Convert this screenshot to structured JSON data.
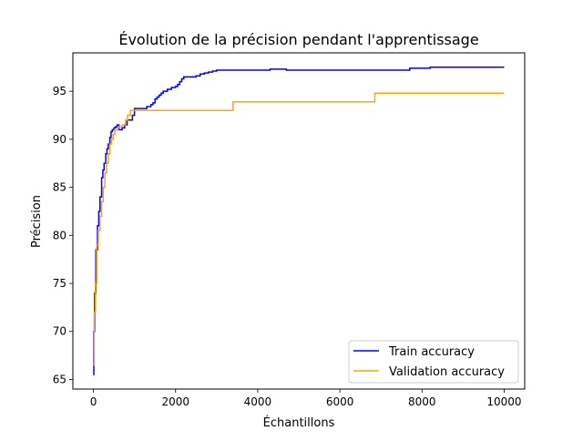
{
  "chart_data": {
    "type": "line",
    "title": "Évolution de la précision pendant l'apprentissage",
    "xlabel": "Échantillons",
    "ylabel": "Précision",
    "xlim": [
      -500,
      10500
    ],
    "ylim": [
      64,
      99
    ],
    "x_ticks": [
      0,
      2000,
      4000,
      6000,
      8000,
      10000
    ],
    "x_tick_labels": [
      "0",
      "2000",
      "4000",
      "6000",
      "8000",
      "10000"
    ],
    "y_ticks": [
      65,
      70,
      75,
      80,
      85,
      90,
      95
    ],
    "y_tick_labels": [
      "65",
      "70",
      "75",
      "80",
      "85",
      "90",
      "95"
    ],
    "grid": false,
    "legend_position": "lower-right",
    "series": [
      {
        "name": "Train accuracy",
        "color": "#0000ff",
        "step": true,
        "x": [
          0,
          10,
          30,
          60,
          100,
          130,
          160,
          200,
          230,
          260,
          300,
          330,
          360,
          400,
          430,
          460,
          500,
          540,
          580,
          620,
          660,
          700,
          760,
          820,
          880,
          950,
          1000,
          1100,
          1200,
          1300,
          1400,
          1450,
          1500,
          1550,
          1600,
          1650,
          1700,
          1800,
          1900,
          2000,
          2050,
          2100,
          2150,
          2200,
          2300,
          2500,
          2600,
          2700,
          2800,
          2900,
          3000,
          3500,
          4000,
          4300,
          4700,
          5000,
          6000,
          7000,
          7700,
          8200,
          8300,
          10000
        ],
        "y": [
          65.5,
          70,
          74,
          78.5,
          81,
          82.5,
          84,
          86,
          86.8,
          87.5,
          88.5,
          89,
          89.5,
          90.2,
          90.8,
          91,
          91.2,
          91.3,
          91.5,
          91,
          91,
          91.2,
          91.5,
          92,
          92,
          92.5,
          93.2,
          93.2,
          93.2,
          93.4,
          93.6,
          93.8,
          94.2,
          94.4,
          94.6,
          94.8,
          95,
          95.2,
          95.4,
          95.5,
          95.7,
          96,
          96.3,
          96.5,
          96.5,
          96.6,
          96.8,
          96.9,
          97,
          97.1,
          97.2,
          97.2,
          97.2,
          97.3,
          97.2,
          97.2,
          97.2,
          97.2,
          97.4,
          97.5,
          97.5,
          97.5
        ]
      },
      {
        "name": "Validation accuracy",
        "color": "#ffa500",
        "step": true,
        "x": [
          0,
          20,
          50,
          80,
          120,
          160,
          200,
          240,
          280,
          320,
          360,
          400,
          440,
          480,
          520,
          600,
          700,
          780,
          830,
          900,
          1000,
          1500,
          2000,
          2500,
          3000,
          3400,
          4000,
          5000,
          6000,
          6850,
          7500,
          8500,
          10000
        ],
        "y": [
          66.5,
          72,
          75,
          79,
          80.5,
          82,
          83.5,
          85,
          86.5,
          87.5,
          88.5,
          89.5,
          90,
          90.5,
          91,
          91.3,
          91.5,
          92,
          92.5,
          93,
          93,
          93,
          93,
          93,
          93,
          93.9,
          93.9,
          93.9,
          93.9,
          94.8,
          94.8,
          94.8,
          94.8
        ]
      }
    ]
  }
}
